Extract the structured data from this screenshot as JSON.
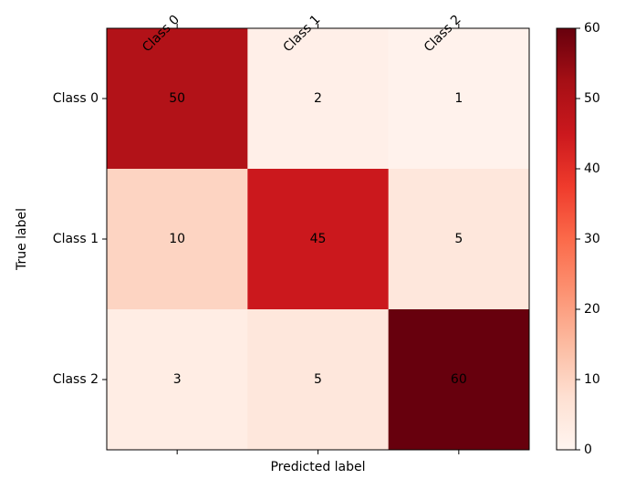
{
  "chart_data": {
    "type": "heatmap",
    "title": "",
    "xlabel": "Predicted label",
    "ylabel": "True label",
    "x_categories": [
      "Class 0",
      "Class 1",
      "Class 2"
    ],
    "y_categories": [
      "Class 0",
      "Class 1",
      "Class 2"
    ],
    "values": [
      [
        50,
        2,
        1
      ],
      [
        10,
        45,
        5
      ],
      [
        3,
        5,
        60
      ]
    ],
    "colormap": "Reds",
    "color_range": [
      0,
      60
    ],
    "colorbar_ticks": [
      0,
      10,
      20,
      30,
      40,
      50,
      60
    ],
    "colorbar_ticks_text": [
      "0",
      "10",
      "20",
      "30",
      "40",
      "50",
      "60"
    ],
    "x_tick_label_rotation_degrees": 45,
    "grid": false,
    "legend": "colorbar right"
  }
}
